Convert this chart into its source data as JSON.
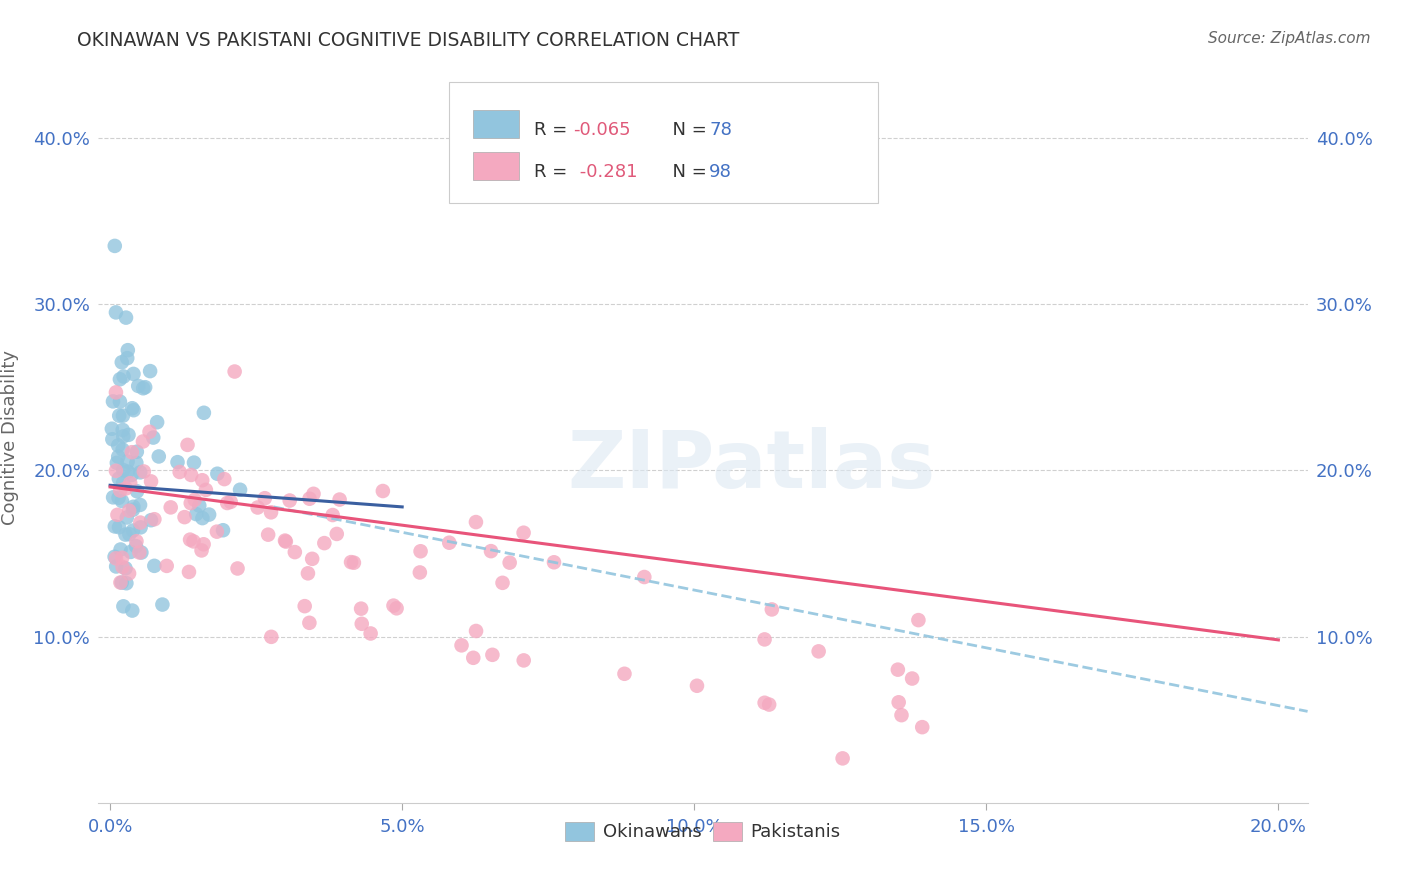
{
  "title": "OKINAWAN VS PAKISTANI COGNITIVE DISABILITY CORRELATION CHART",
  "source": "Source: ZipAtlas.com",
  "ylabel": "Cognitive Disability",
  "xlabel": "",
  "xlim": [
    -0.002,
    0.205
  ],
  "ylim": [
    0.0,
    0.44
  ],
  "xtick_labels": [
    "0.0%",
    "5.0%",
    "10.0%",
    "15.0%",
    "20.0%"
  ],
  "xtick_vals": [
    0.0,
    0.05,
    0.1,
    0.15,
    0.2
  ],
  "ytick_labels": [
    "10.0%",
    "20.0%",
    "30.0%",
    "40.0%"
  ],
  "ytick_vals": [
    0.1,
    0.2,
    0.3,
    0.4
  ],
  "okinawan_color": "#92c5de",
  "pakistani_color": "#f4a9c0",
  "okinawan_line_color": "#3a5fa0",
  "pakistani_line_color": "#e8547a",
  "okinawan_dash_color": "#92c5de",
  "R_okinawan": -0.065,
  "N_okinawan": 78,
  "R_pakistani": -0.281,
  "N_pakistani": 98,
  "watermark": "ZIPatlas",
  "background_color": "#ffffff",
  "grid_color": "#d0d0d0",
  "title_color": "#333333",
  "tick_label_color": "#4472c4",
  "legend_r_color": "#e05a7a",
  "legend_n_color": "#4472c4"
}
